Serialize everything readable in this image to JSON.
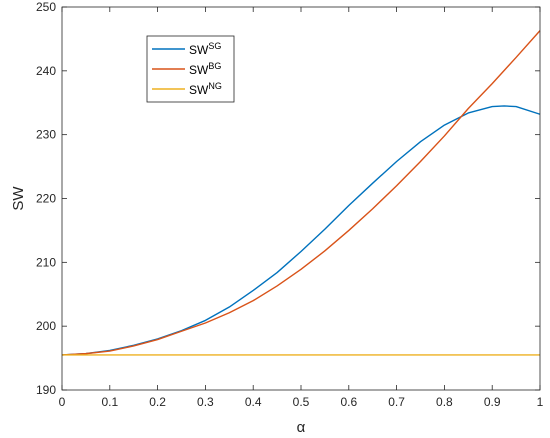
{
  "chart_data": {
    "type": "line",
    "xlabel": "α",
    "ylabel": "SW",
    "xlim": [
      0,
      1
    ],
    "ylim": [
      190,
      250
    ],
    "x_ticks": [
      "0",
      "0.1",
      "0.2",
      "0.3",
      "0.4",
      "0.5",
      "0.6",
      "0.7",
      "0.8",
      "0.9",
      "1"
    ],
    "y_ticks": [
      "190",
      "200",
      "210",
      "220",
      "230",
      "240",
      "250"
    ],
    "grid": false,
    "legend_position": "top-left",
    "series": [
      {
        "name": "SW",
        "name_sup": "SG",
        "color": "#0072BD",
        "x": [
          0,
          0.05,
          0.1,
          0.15,
          0.2,
          0.25,
          0.3,
          0.35,
          0.4,
          0.45,
          0.5,
          0.55,
          0.6,
          0.65,
          0.7,
          0.75,
          0.8,
          0.85,
          0.9,
          0.925,
          0.95,
          1
        ],
        "y": [
          195.5,
          195.7,
          196.2,
          197.0,
          198.0,
          199.3,
          200.9,
          203.0,
          205.6,
          208.4,
          211.7,
          215.2,
          218.9,
          222.4,
          225.8,
          228.9,
          231.5,
          233.4,
          234.4,
          234.5,
          234.4,
          233.2
        ]
      },
      {
        "name": "SW",
        "name_sup": "BG",
        "color": "#D95319",
        "x": [
          0,
          0.05,
          0.1,
          0.15,
          0.2,
          0.25,
          0.3,
          0.35,
          0.4,
          0.45,
          0.5,
          0.55,
          0.6,
          0.65,
          0.7,
          0.75,
          0.8,
          0.85,
          0.9,
          0.95,
          1
        ],
        "y": [
          195.5,
          195.7,
          196.1,
          196.9,
          197.9,
          199.2,
          200.5,
          202.1,
          204.0,
          206.3,
          208.9,
          211.8,
          215.0,
          218.4,
          222.0,
          225.8,
          229.8,
          234.1,
          238.0,
          242.1,
          246.3
        ]
      },
      {
        "name": "SW",
        "name_sup": "NG",
        "color": "#EDB120",
        "x": [
          0,
          1
        ],
        "y": [
          195.5,
          195.5
        ]
      }
    ]
  }
}
